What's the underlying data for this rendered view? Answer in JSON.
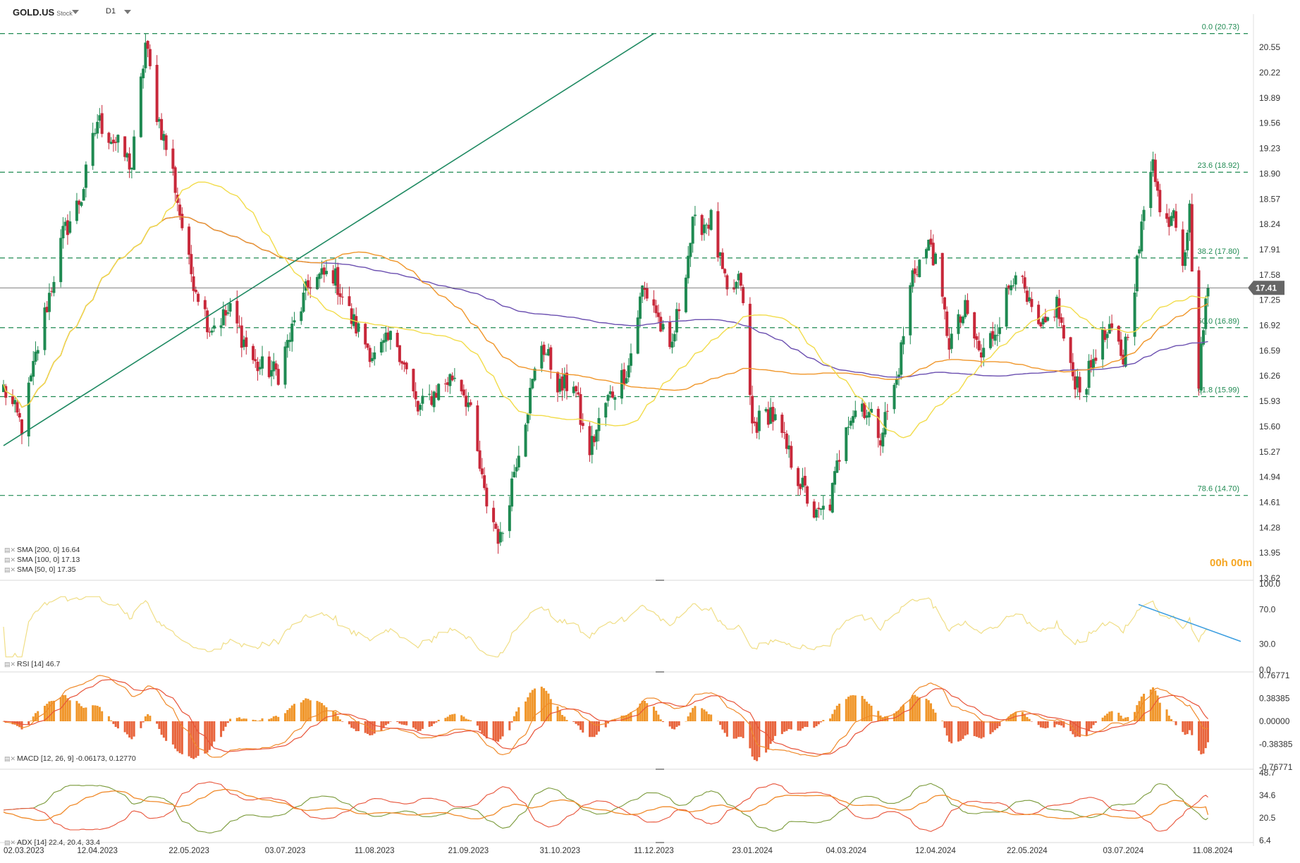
{
  "header": {
    "symbol": "GOLD.US",
    "instrument_type": "Stock",
    "timeframe": "D1"
  },
  "timer": "00h 00m",
  "legends": {
    "sma200": "SMA [200, 0] 16.64",
    "sma100": "SMA [100, 0] 17.13",
    "sma50": "SMA [50, 0] 17.35",
    "rsi": "RSI [14] 46.7",
    "macd": "MACD [12, 26, 9] -0.06173, 0.12770",
    "adx": "ADX [14] 22.4, 20.4, 33.4"
  },
  "colors": {
    "up": "#1f8a52",
    "down": "#c8283a",
    "fib": "#1f8a52",
    "sma50": "#f2dc4a",
    "sma100": "#f0962a",
    "sma200": "#6b4fb0",
    "trendline": "#1f8a62",
    "rsi": "#f0de86",
    "rsi_trend": "#3a9de0",
    "macd_hist_pos": "#f0962a",
    "macd_hist_neg": "#e8643c",
    "macd_line": "#f08a2a",
    "macd_signal": "#e8543a",
    "adx": "#f08a2a",
    "di_plus": "#7a9a3a",
    "di_minus": "#e8543a",
    "price_label_bg": "#666666"
  },
  "chart_data": [
    {
      "type": "candlestick",
      "name": "price",
      "x_labels": [
        "02.03.2023",
        "12.04.2023",
        "22.05.2023",
        "03.07.2023",
        "11.08.2023",
        "21.09.2023",
        "31.10.2023",
        "11.12.2023",
        "23.01.2024",
        "04.03.2024",
        "12.04.2024",
        "22.05.2024",
        "03.07.2024",
        "11.08.2024"
      ],
      "y_ticks": [
        "20.55",
        "20.22",
        "19.89",
        "19.56",
        "19.23",
        "18.90",
        "18.57",
        "18.24",
        "17.91",
        "17.58",
        "17.25",
        "16.92",
        "16.59",
        "16.26",
        "15.93",
        "15.60",
        "15.27",
        "14.94",
        "14.61",
        "14.28",
        "13.95",
        "13.62"
      ],
      "ylim": [
        13.62,
        20.8
      ],
      "last_price": "17.41",
      "fibonacci": [
        {
          "level": "0.0",
          "value": 20.73,
          "label": "0.0 (20.73)"
        },
        {
          "level": "23.6",
          "value": 18.92,
          "label": "23.6 (18.92)"
        },
        {
          "level": "38.2",
          "value": 17.8,
          "label": "38.2 (17.80)"
        },
        {
          "level": "50.0",
          "value": 16.89,
          "label": "50.0 (16.89)"
        },
        {
          "level": "61.8",
          "value": 15.99,
          "label": "61.8 (15.99)"
        },
        {
          "level": "78.6",
          "value": 14.7,
          "label": "78.6 (14.70)"
        }
      ],
      "trendline": {
        "from": {
          "date": "02.03.2023",
          "value": 15.35
        },
        "to": {
          "date": "11.12.2023",
          "value": 20.73
        }
      },
      "anchors": [
        [
          "2023-03-02",
          16.1
        ],
        [
          "2023-03-10",
          15.6
        ],
        [
          "2023-03-18",
          16.8
        ],
        [
          "2023-03-28",
          18.1
        ],
        [
          "2023-04-05",
          18.6
        ],
        [
          "2023-04-12",
          19.6
        ],
        [
          "2023-04-20",
          19.3
        ],
        [
          "2023-04-27",
          19.0
        ],
        [
          "2023-05-03",
          20.6
        ],
        [
          "2023-05-08",
          19.7
        ],
        [
          "2023-05-15",
          18.9
        ],
        [
          "2023-05-22",
          17.7
        ],
        [
          "2023-05-31",
          16.9
        ],
        [
          "2023-06-09",
          17.1
        ],
        [
          "2023-06-20",
          16.4
        ],
        [
          "2023-06-30",
          16.3
        ],
        [
          "2023-07-03",
          16.6
        ],
        [
          "2023-07-14",
          17.5
        ],
        [
          "2023-07-24",
          17.6
        ],
        [
          "2023-08-01",
          17.0
        ],
        [
          "2023-08-11",
          16.5
        ],
        [
          "2023-08-20",
          16.8
        ],
        [
          "2023-08-30",
          15.8
        ],
        [
          "2023-09-08",
          16.1
        ],
        [
          "2023-09-16",
          16.3
        ],
        [
          "2023-09-21",
          15.9
        ],
        [
          "2023-09-28",
          14.7
        ],
        [
          "2023-10-05",
          14.1
        ],
        [
          "2023-10-12",
          15.2
        ],
        [
          "2023-10-23",
          16.7
        ],
        [
          "2023-10-31",
          16.1
        ],
        [
          "2023-11-06",
          16.2
        ],
        [
          "2023-11-12",
          15.2
        ],
        [
          "2023-11-20",
          15.9
        ],
        [
          "2023-11-30",
          16.4
        ],
        [
          "2023-12-06",
          17.4
        ],
        [
          "2023-12-11",
          17.2
        ],
        [
          "2023-12-18",
          16.5
        ],
        [
          "2023-12-28",
          18.2
        ],
        [
          "2024-01-05",
          18.3
        ],
        [
          "2024-01-12",
          17.3
        ],
        [
          "2024-01-18",
          17.5
        ],
        [
          "2024-01-23",
          15.6
        ],
        [
          "2024-01-31",
          15.8
        ],
        [
          "2024-02-07",
          15.3
        ],
        [
          "2024-02-14",
          14.8
        ],
        [
          "2024-02-20",
          14.4
        ],
        [
          "2024-02-26",
          14.6
        ],
        [
          "2024-03-04",
          15.7
        ],
        [
          "2024-03-11",
          15.9
        ],
        [
          "2024-03-19",
          15.5
        ],
        [
          "2024-03-26",
          16.2
        ],
        [
          "2024-04-02",
          17.6
        ],
        [
          "2024-04-10",
          18.0
        ],
        [
          "2024-04-12",
          17.7
        ],
        [
          "2024-04-18",
          16.7
        ],
        [
          "2024-04-25",
          17.1
        ],
        [
          "2024-05-02",
          16.5
        ],
        [
          "2024-05-10",
          17.0
        ],
        [
          "2024-05-17",
          17.7
        ],
        [
          "2024-05-22",
          17.2
        ],
        [
          "2024-05-28",
          16.8
        ],
        [
          "2024-06-04",
          17.2
        ],
        [
          "2024-06-10",
          16.3
        ],
        [
          "2024-06-16",
          16.1
        ],
        [
          "2024-06-22",
          16.7
        ],
        [
          "2024-06-28",
          16.8
        ],
        [
          "2024-07-03",
          16.5
        ],
        [
          "2024-07-08",
          17.5
        ],
        [
          "2024-07-13",
          18.6
        ],
        [
          "2024-07-16",
          19.2
        ],
        [
          "2024-07-20",
          18.1
        ],
        [
          "2024-07-25",
          18.5
        ],
        [
          "2024-07-29",
          17.8
        ],
        [
          "2024-08-01",
          18.4
        ],
        [
          "2024-08-03",
          17.1
        ],
        [
          "2024-08-05",
          16.1
        ],
        [
          "2024-08-07",
          17.0
        ],
        [
          "2024-08-09",
          17.41
        ]
      ]
    },
    {
      "type": "line",
      "name": "RSI",
      "y_ticks": [
        "100.0",
        "70.0",
        "30.0",
        "0.0"
      ],
      "ylim": [
        0,
        100
      ],
      "last_value": 46.7
    },
    {
      "type": "bar",
      "name": "MACD",
      "y_ticks": [
        "0.76771",
        "0.38385",
        "0.00000",
        "-0.38385",
        "-0.76771"
      ],
      "ylim": [
        -0.76771,
        0.76771
      ],
      "last_values": {
        "histogram": -0.06173,
        "signal": 0.1277
      }
    },
    {
      "type": "line",
      "name": "ADX",
      "y_ticks": [
        "48.7",
        "34.6",
        "20.5",
        "6.4"
      ],
      "ylim": [
        6.4,
        48.7
      ],
      "last_values": {
        "adx": 22.4,
        "di_plus": 20.4,
        "di_minus": 33.4
      }
    }
  ]
}
